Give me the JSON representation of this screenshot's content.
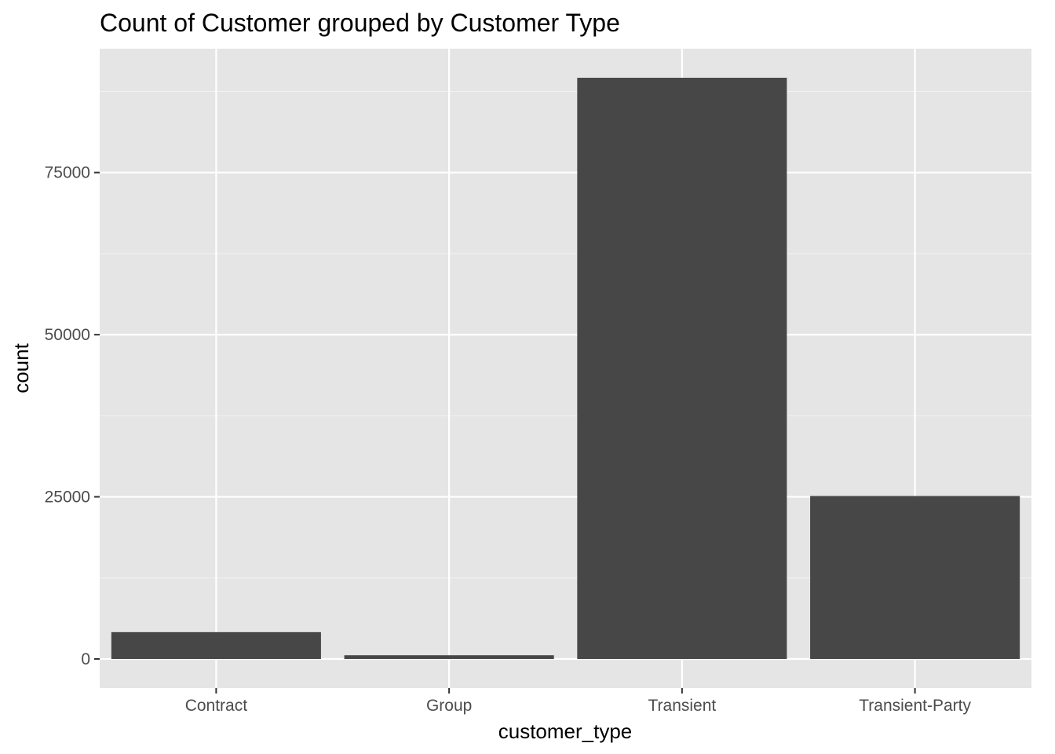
{
  "colors": {
    "panel_background": "#e5e5e5",
    "grid_major": "#ffffff",
    "grid_minor": "#f2f2f2",
    "bar_fill": "#474747",
    "tick_text": "#4d4d4d",
    "axis_tick": "#333333"
  },
  "chart_data": {
    "type": "bar",
    "title": "Count of Customer grouped by Customer Type",
    "xlabel": "customer_type",
    "ylabel": "count",
    "categories": [
      "Contract",
      "Group",
      "Transient",
      "Transient-Party"
    ],
    "values": [
      4136,
      577,
      89613,
      25124
    ],
    "ylim": [
      -4481,
      94094
    ],
    "yticks": [
      0,
      25000,
      50000,
      75000
    ],
    "ytick_labels": [
      "0",
      "25000",
      "50000",
      "75000"
    ],
    "grid": true,
    "legend": "none"
  }
}
